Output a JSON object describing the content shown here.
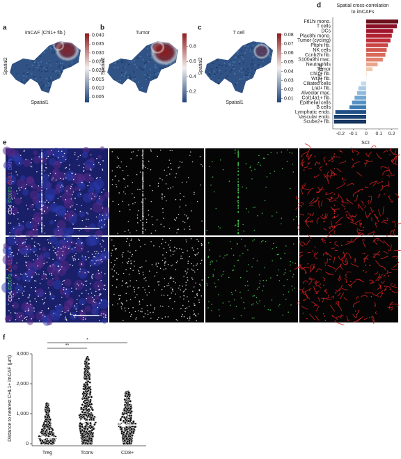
{
  "panel_labels": [
    "a",
    "b",
    "c",
    "d",
    "e",
    "f"
  ],
  "chart_data": [
    {
      "type": "spatial",
      "title": "imCAF (Chl1+ fib.)",
      "xlabel": "Spatial1",
      "ylabel": "Spatial2",
      "colors": [
        "#1f4379",
        "#f1efed",
        "#8e1b1b"
      ],
      "clim": [
        0.002,
        0.041
      ],
      "colorbar_ticks": [
        {
          "value": 0.04,
          "label": "0.040"
        },
        0.035,
        {
          "value": 0.03,
          "label": "0.030"
        },
        0.025,
        {
          "value": 0.02,
          "label": "0.020"
        },
        0.015,
        {
          "value": 0.01,
          "label": "0.010"
        },
        0.005
      ]
    },
    {
      "type": "spatial",
      "title": "Tumor",
      "ylabel": "Spatial2",
      "colors": [
        "#1f4379",
        "#f1efed",
        "#8e1b1b"
      ],
      "clim": [
        0.06,
        0.97
      ],
      "colorbar_ticks": [
        0.8,
        0.6,
        0.4,
        0.2
      ]
    },
    {
      "type": "spatial",
      "title": "T cell",
      "xlabel": "Spatial1",
      "ylabel": "Spatial2",
      "colors": [
        "#1f4379",
        "#f1efed",
        "#8e1b1b"
      ],
      "clim": [
        0.006,
        0.0815
      ],
      "colorbar_ticks": [
        0.08,
        0.07,
        0.06,
        0.05,
        0.04,
        0.03,
        0.02,
        0.01
      ]
    },
    {
      "type": "hbar",
      "title": [
        "Spatial cross-correlation",
        "to imCAFs"
      ],
      "xlabel": "SCI",
      "ylabel": "Cell type",
      "categories": [
        "Ftl1hi mono.",
        "T cells",
        "DCs",
        "Plac8hi mono.",
        "Tumor (cycling)",
        "Pltphi fib.",
        "NK cells",
        "Ccnb2hi fib.",
        "S100a9hi mac.",
        "Neutrophils",
        "Tumor",
        "Chl1+ fib.",
        "Wt1+ fib.",
        "Ciliated cells",
        "Lrat+ fib.",
        "Alveolar mac.",
        "Col14a1+ fib.",
        "Epithelial cells",
        "B cells",
        "Lymphatic endo.",
        "Vascular endo.",
        "Scube2+ fib."
      ],
      "values": [
        0.25,
        0.24,
        0.21,
        0.2,
        0.19,
        0.17,
        0.16,
        0.15,
        0.13,
        0.09,
        0.05,
        0.005,
        0.002,
        -0.04,
        -0.06,
        -0.07,
        -0.09,
        -0.11,
        -0.13,
        -0.24,
        -0.25,
        -0.25
      ],
      "colors": [
        "#6b0f1a",
        "#8a1026",
        "#a0152b",
        "#b11f2f",
        "#bf2f39",
        "#ca4545",
        "#d25850",
        "#d96b5c",
        "#e1846f",
        "#eaa68c",
        "#f2c8ad",
        "#f6dccb",
        "#d7e6f3",
        "#c2d9ee",
        "#a9cae6",
        "#90bbdf",
        "#72a7d3",
        "#5590c4",
        "#3d79b2",
        "#214f87",
        "#1a4172",
        "#15345f"
      ],
      "xlim": [
        -0.26,
        0.25
      ],
      "xticks": [
        -0.2,
        -0.1,
        0,
        0.1,
        0.2
      ]
    },
    {
      "type": "strip",
      "ylabel": "Distance to nearest CHL1+ imCAF (μm)",
      "categories": [
        "Treg",
        "Tconv",
        "CD8+"
      ],
      "values": [
        200,
        750,
        620
      ],
      "max_values": [
        1350,
        2900,
        1750
      ],
      "ylim": [
        0,
        3000
      ],
      "yticks": [
        0,
        {
          "value": 1000,
          "label": "1,000"
        },
        {
          "value": 2000,
          "label": "2,000"
        },
        {
          "value": 3000,
          "label": "3,000"
        }
      ],
      "significance": [
        "**",
        "*"
      ]
    }
  ],
  "panel_e": {
    "stains": [
      {
        "text": "CD4",
        "color": "#ffffff"
      },
      {
        "text": "FOXP3",
        "color": "#39c43f"
      },
      {
        "text": "CHL1",
        "color": "#e83a3a"
      },
      {
        "text": "DAPI",
        "color": "#4c6cf0"
      }
    ]
  }
}
